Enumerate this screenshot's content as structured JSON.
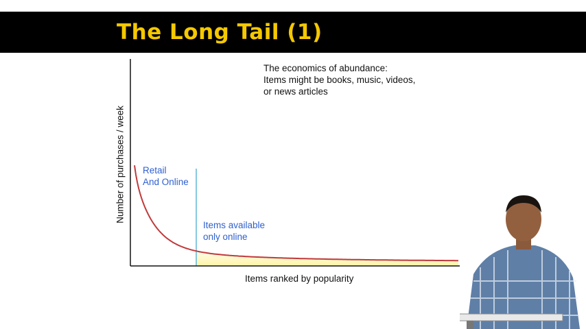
{
  "slide": {
    "title": "The Long Tail (1)"
  },
  "chart_data": {
    "type": "area",
    "description_lines": [
      "The economics of abundance:",
      "Items might be books, music, videos,",
      "or news articles"
    ],
    "xlabel": "Items ranked by popularity",
    "ylabel": "Number of purchases / week",
    "regions": [
      {
        "label_lines": [
          "Retail",
          "And Online"
        ]
      },
      {
        "label_lines": [
          "Items available",
          "only online"
        ]
      }
    ],
    "curve": "long-tail decreasing curve",
    "colors": {
      "curve": "#c0393b",
      "divider": "#5bb8d6",
      "tail_fill": "#fff3a0",
      "region_label": "#2e5fcf"
    }
  }
}
